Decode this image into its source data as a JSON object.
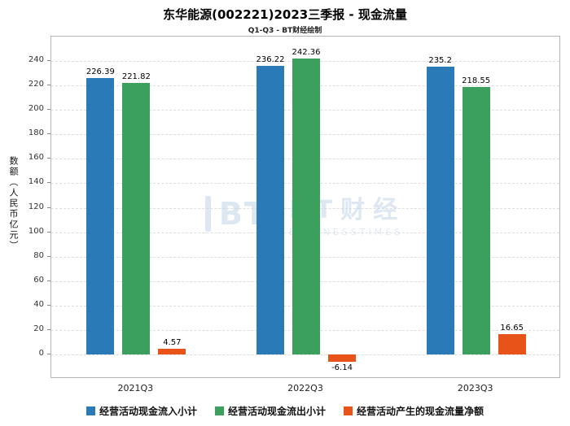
{
  "chart_data": {
    "type": "bar",
    "title": "东华能源(002221)2023三季报 - 现金流量",
    "subtitle": "Q1-Q3 - BT财经绘制",
    "ylabel": "数额（人民币亿元）",
    "xlabel": "",
    "categories": [
      "2021Q3",
      "2022Q3",
      "2023Q3"
    ],
    "series": [
      {
        "name": "经营活动现金流入小计",
        "color": "#2a7ab8",
        "values": [
          226.39,
          236.22,
          235.2
        ]
      },
      {
        "name": "经营活动现金流出小计",
        "color": "#3ba05e",
        "values": [
          221.82,
          242.36,
          218.55
        ]
      },
      {
        "name": "经营活动产生的现金流量净额",
        "color": "#e8531a",
        "values": [
          4.57,
          -6.14,
          16.65
        ]
      }
    ],
    "ylim": [
      -20,
      260
    ],
    "yticks": [
      0,
      20,
      40,
      60,
      80,
      100,
      120,
      140,
      160,
      180,
      200,
      220,
      240
    ],
    "grid": true,
    "legend_position": "bottom"
  },
  "watermark": {
    "logo_text": "BT",
    "name": "BT财经",
    "subtext": "BUSINESSTIMES"
  }
}
